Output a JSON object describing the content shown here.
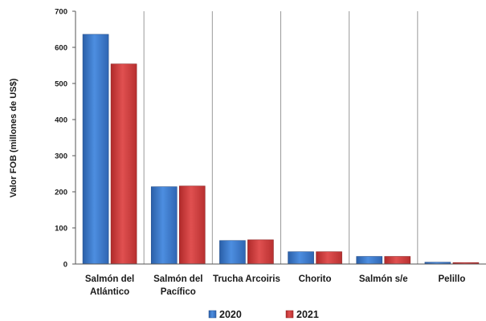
{
  "chart_data": {
    "type": "bar",
    "title": "",
    "xlabel": "",
    "ylabel": "Valor FOB (millones de US$)",
    "ylim": [
      0,
      700
    ],
    "yticks": [
      0,
      100,
      200,
      300,
      400,
      500,
      600,
      700
    ],
    "grid": false,
    "legend_position": "bottom",
    "categories": [
      [
        "Salmón del",
        "Atlántico"
      ],
      [
        "Salmón del",
        "Pacífico"
      ],
      [
        "Trucha Arcoiris"
      ],
      [
        "Chorito"
      ],
      [
        "Salmón s/e"
      ],
      [
        "Pelillo"
      ]
    ],
    "series": [
      {
        "name": "2020",
        "color": "#3a78c9",
        "values": [
          636,
          214,
          65,
          34,
          21,
          5
        ]
      },
      {
        "name": "2021",
        "color": "#d43b3b",
        "values": [
          554,
          216,
          67,
          34,
          21,
          4
        ]
      }
    ]
  }
}
